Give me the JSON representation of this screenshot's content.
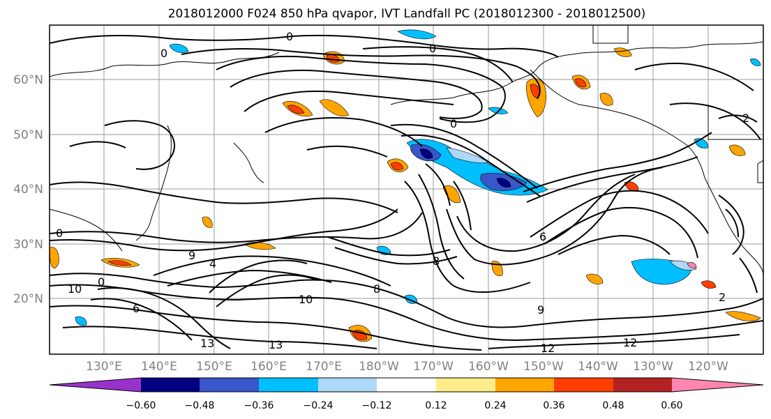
{
  "figure": {
    "title": "2018012000 F024 850 hPa qvapor, IVT Landfall PC (2018012300 - 2018012500)"
  },
  "map": {
    "lon_labels": [
      "130°E",
      "140°E",
      "150°E",
      "160°E",
      "170°E",
      "180°W",
      "170°W",
      "160°W",
      "150°W",
      "140°W",
      "130°W",
      "120°W"
    ],
    "lat_labels": [
      "60°N",
      "50°N",
      "40°N",
      "30°N",
      "20°N"
    ],
    "contour_labels": [
      "0",
      "0",
      "0",
      "0",
      "0",
      "0",
      "2",
      "2",
      "4",
      "6",
      "6",
      "8",
      "8",
      "9",
      "9",
      "10",
      "10",
      "12",
      "12",
      "13",
      "13"
    ]
  },
  "colorbar": {
    "colors": [
      "#9932cc",
      "#000080",
      "#3a57c9",
      "#00bfff",
      "#add8f8",
      "#ffffff",
      "#ffed8a",
      "#ffa500",
      "#ff3d00",
      "#b22222",
      "#ff86b0"
    ],
    "tick_labels": [
      "−0.60",
      "−0.48",
      "−0.36",
      "−0.24",
      "−0.12",
      "0.12",
      "0.24",
      "0.36",
      "0.48",
      "0.60"
    ]
  }
}
